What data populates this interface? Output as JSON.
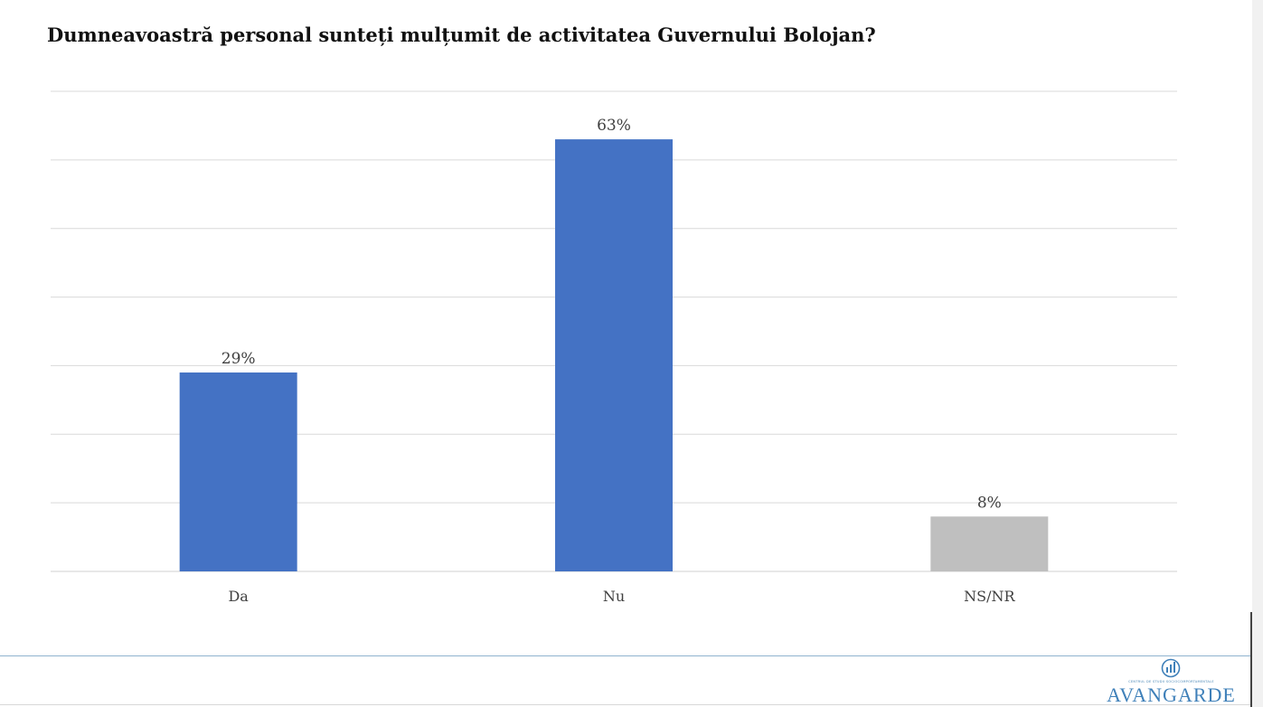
{
  "chart_data": {
    "type": "bar",
    "title": "Dumneavoastră personal sunteți mulțumit de activitatea Guvernului Bolojan?",
    "categories": [
      "Da",
      "Nu",
      "NS/NR"
    ],
    "values": [
      29,
      63,
      8
    ],
    "data_labels": [
      "29%",
      "63%",
      "8%"
    ],
    "colors": [
      "#4472c4",
      "#4472c4",
      "#bfbfbf"
    ],
    "ylim": [
      0,
      70
    ],
    "grid": true,
    "grid_step": 10
  },
  "logo": {
    "tagline": "CENTRUL DE STUDII SOCIOCOMPORTAMENTALE",
    "name": "AVANGARDE",
    "color": "#3f80b9"
  }
}
